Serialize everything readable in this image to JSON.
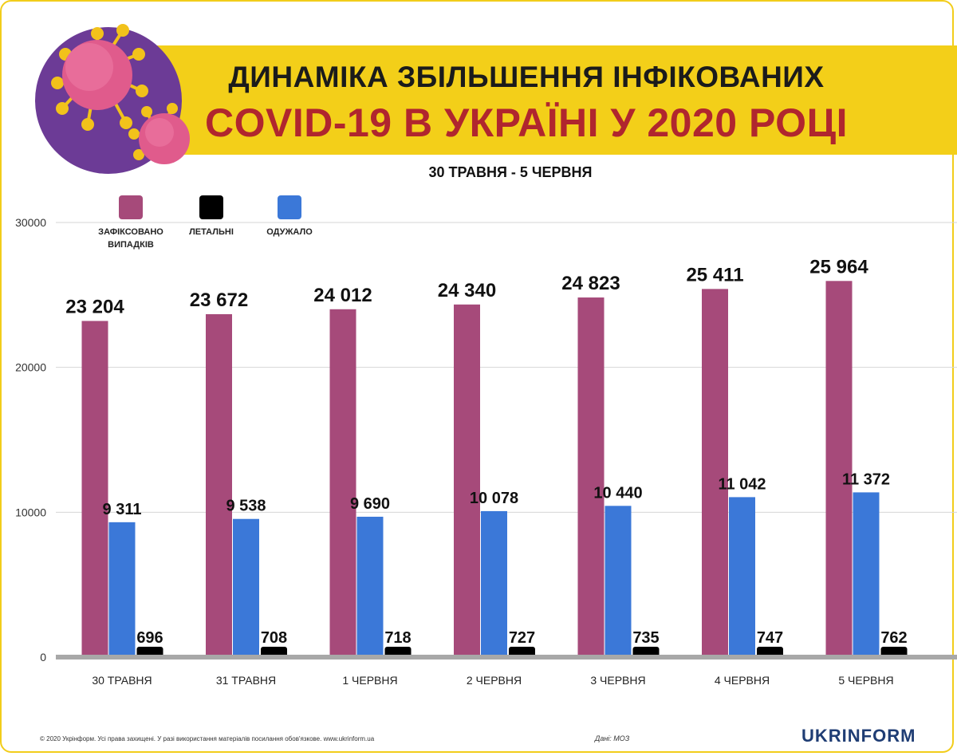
{
  "title": {
    "line1": "ДИНАМІКА ЗБІЛЬШЕННЯ ІНФІКОВАНИХ",
    "line2": "COVID-19 В УКРАЇНІ У 2020 РОЦІ"
  },
  "subtitle": "30 ТРАВНЯ - 5 ЧЕРВНЯ",
  "legend": [
    {
      "label": "ЗАФІКСОВАНО ВИПАДКІВ",
      "color": "#a64a7a"
    },
    {
      "label": "ЛЕТАЛЬНІ",
      "color": "#000000"
    },
    {
      "label": "ОДУЖАЛО",
      "color": "#3b78d8"
    }
  ],
  "colors": {
    "accent": "#f3cf19",
    "title_red": "#b0262e",
    "logo": "#1f3d74"
  },
  "chart_data": {
    "type": "bar",
    "categories": [
      "30 ТРАВНЯ",
      "31 ТРАВНЯ",
      "1 ЧЕРВНЯ",
      "2 ЧЕРВНЯ",
      "3 ЧЕРВНЯ",
      "4 ЧЕРВНЯ",
      "5 ЧЕРВНЯ"
    ],
    "series": [
      {
        "name": "ЗАФІКСОВАНО ВИПАДКІВ",
        "color": "#a64a7a",
        "values": [
          23204,
          23672,
          24012,
          24340,
          24823,
          25411,
          25964
        ],
        "labels": [
          "23 204",
          "23 672",
          "24 012",
          "24 340",
          "24 823",
          "25 411",
          "25 964"
        ]
      },
      {
        "name": "ОДУЖАЛО",
        "color": "#3b78d8",
        "values": [
          9311,
          9538,
          9690,
          10078,
          10440,
          11042,
          11372
        ],
        "labels": [
          "9 311",
          "9 538",
          "9 690",
          "10 078",
          "10 440",
          "11 042",
          "11 372"
        ]
      },
      {
        "name": "ЛЕТАЛЬНІ",
        "color": "#000000",
        "values": [
          696,
          708,
          718,
          727,
          735,
          747,
          762
        ],
        "labels": [
          "696",
          "708",
          "718",
          "727",
          "735",
          "747",
          "762"
        ]
      }
    ],
    "yticks": [
      "0",
      "10000",
      "20000",
      "30000"
    ],
    "ylim": [
      0,
      30000
    ],
    "grid": true
  },
  "footer": {
    "copyright": "© 2020 Укрінформ. Усі права захищені. У разі використання матеріалів посилання обов'язкове. www.ukrinform.ua",
    "source": "Дані: МОЗ",
    "logo": "UKRINFORM"
  }
}
